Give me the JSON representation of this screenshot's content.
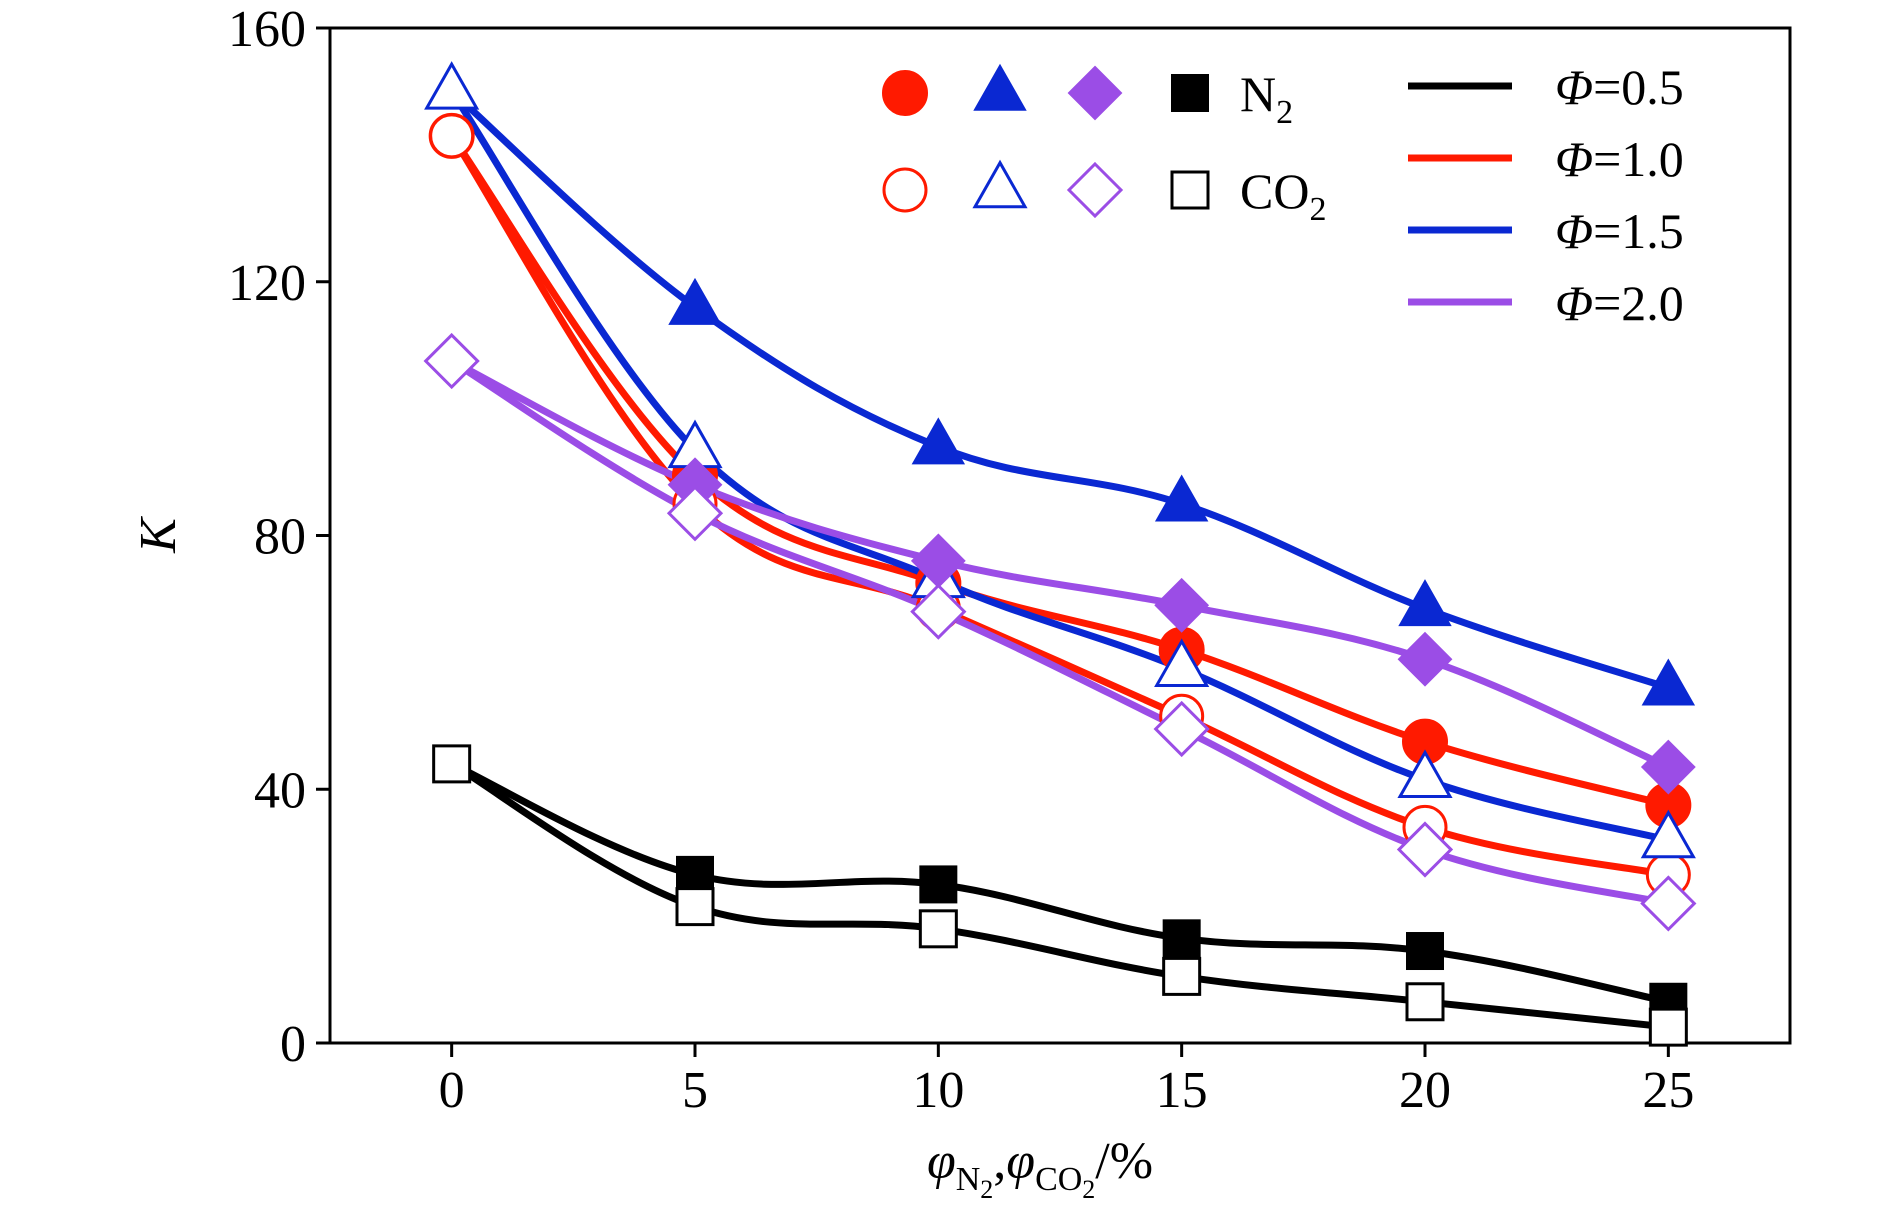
{
  "chart_data": {
    "type": "line",
    "title": "",
    "xlabel": {
      "parts": [
        {
          "text": "φ",
          "style": "italic"
        },
        {
          "text": "N",
          "style": "sub"
        },
        {
          "text": "2",
          "style": "subsub"
        },
        {
          "text": ",",
          "style": "normal"
        },
        {
          "text": "φ",
          "style": "italic"
        },
        {
          "text": "CO",
          "style": "sub"
        },
        {
          "text": "2",
          "style": "subsub"
        },
        {
          "text": "/%",
          "style": "normal"
        }
      ]
    },
    "ylabel": "K",
    "x": [
      0,
      5,
      10,
      15,
      20,
      25
    ],
    "xticks": [
      0,
      5,
      10,
      15,
      20,
      25
    ],
    "xtick_labels": [
      "0",
      "5",
      "10",
      "15",
      "20",
      "25"
    ],
    "yticks": [
      0,
      40,
      80,
      120,
      160
    ],
    "ytick_labels": [
      "0",
      "40",
      "80",
      "120",
      "160"
    ],
    "xlim": [
      -2.5,
      27.5
    ],
    "ylim": [
      0,
      160
    ],
    "grid": false,
    "legend_placement": "top-right",
    "legend": {
      "diluents": [
        {
          "label": "N",
          "sub": "2",
          "fill": "solid"
        },
        {
          "label": "CO",
          "sub": "2",
          "fill": "hollow"
        }
      ],
      "phi": [
        {
          "symbol": "Φ",
          "text": "=0.5",
          "color": "#000000",
          "marker": "square"
        },
        {
          "symbol": "Φ",
          "text": "=1.0",
          "color": "#ff1a00",
          "marker": "circle"
        },
        {
          "symbol": "Φ",
          "text": "=1.5",
          "color": "#0a28d2",
          "marker": "triangle"
        },
        {
          "symbol": "Φ",
          "text": "=2.0",
          "color": "#9b4de6",
          "marker": "diamond"
        }
      ]
    },
    "series": [
      {
        "phi": "0.5",
        "diluent": "N2",
        "color": "#000000",
        "marker": "square",
        "fill": "solid",
        "values": [
          44,
          26.5,
          25,
          16.5,
          14.5,
          6.5
        ]
      },
      {
        "phi": "0.5",
        "diluent": "CO2",
        "color": "#000000",
        "marker": "square",
        "fill": "hollow",
        "values": [
          44,
          21.5,
          18,
          10.5,
          6.5,
          2.5
        ]
      },
      {
        "phi": "1.0",
        "diluent": "N2",
        "color": "#ff1a00",
        "marker": "circle",
        "fill": "solid",
        "values": [
          143,
          89.5,
          72.5,
          62,
          47.5,
          37.5
        ]
      },
      {
        "phi": "1.0",
        "diluent": "CO2",
        "color": "#ff1a00",
        "marker": "circle",
        "fill": "hollow",
        "values": [
          143,
          85,
          68.5,
          51.5,
          34,
          26.5
        ]
      },
      {
        "phi": "1.5",
        "diluent": "N2",
        "color": "#0a28d2",
        "marker": "triangle",
        "fill": "solid",
        "values": [
          150,
          116,
          94,
          85,
          68.5,
          56
        ]
      },
      {
        "phi": "1.5",
        "diluent": "CO2",
        "color": "#0a28d2",
        "marker": "triangle",
        "fill": "hollow",
        "values": [
          150,
          93.5,
          73,
          59,
          41.5,
          32
        ]
      },
      {
        "phi": "2.0",
        "diluent": "N2",
        "color": "#9b4de6",
        "marker": "diamond",
        "fill": "solid",
        "values": [
          107.5,
          88,
          76,
          69,
          60.5,
          43.5
        ]
      },
      {
        "phi": "2.0",
        "diluent": "CO2",
        "color": "#9b4de6",
        "marker": "diamond",
        "fill": "hollow",
        "values": [
          107.5,
          83.5,
          68,
          49.5,
          30.5,
          22
        ]
      }
    ]
  }
}
